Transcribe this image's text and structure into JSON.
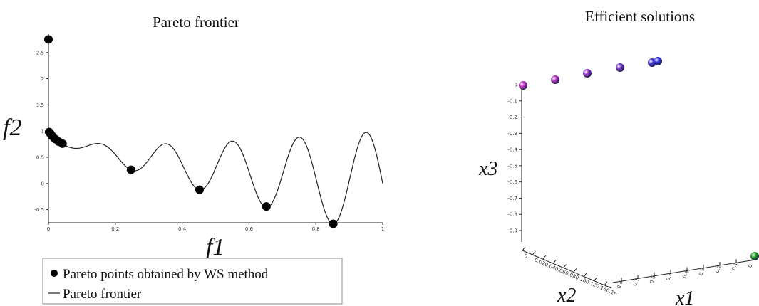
{
  "chart_data": [
    {
      "type": "line",
      "title": "Pareto frontier",
      "xlabel": "f1",
      "ylabel": "f2",
      "xlim": [
        0,
        1
      ],
      "ylim": [
        -0.75,
        2.85
      ],
      "x_ticks": [
        "0",
        "0.2",
        "0.4",
        "0.6",
        "0.8",
        "1"
      ],
      "y_ticks": [
        "-0.5",
        "0",
        "0.5",
        "1",
        "1.5",
        "2",
        "2.5"
      ],
      "series": [
        {
          "name": "Pareto points obtained by WS method",
          "kind": "scatter",
          "x": [
            0,
            0.002,
            0.006,
            0.012,
            0.02,
            0.03,
            0.042,
            0.247,
            0.452,
            0.652,
            0.852
          ],
          "y": [
            2.75,
            0.98,
            0.95,
            0.9,
            0.85,
            0.8,
            0.76,
            0.26,
            -0.12,
            -0.44,
            -0.77
          ]
        },
        {
          "name": "Pareto frontier",
          "kind": "line",
          "formula": "f2 = 1 - sqrt(f1) - f1*sin(10*pi*f1)"
        }
      ],
      "legend": "bottom-left"
    },
    {
      "type": "scatter",
      "title": "Efficient solutions",
      "xlabel": "x1",
      "ylabel": "x2",
      "zlabel": "x3",
      "x1_ticks": [
        "0.8",
        "0.7",
        "0.6",
        "0.5",
        "0.4",
        "0.3",
        "0.2",
        "0.1",
        "0"
      ],
      "x2_ticks": [
        "0",
        "0.02",
        "0.04",
        "0.06",
        "0.08",
        "0.10",
        "0.12",
        "0.14",
        "0.16"
      ],
      "x3_ticks": [
        "0",
        "-0.1",
        "-0.2",
        "-0.3",
        "-0.4",
        "-0.5",
        "-0.6",
        "-0.7",
        "-0.8",
        "-0.9"
      ],
      "points": [
        {
          "label": "",
          "color": "#cc33cc"
        },
        {
          "label": "",
          "color": "#bb33cc"
        },
        {
          "label": "",
          "color": "#9933cc"
        },
        {
          "label": "",
          "color": "#7733cc"
        },
        {
          "label": "",
          "color": "#4433dd"
        },
        {
          "label": "",
          "color": "#3333dd"
        },
        {
          "label": "",
          "color": "#22aa22"
        }
      ]
    }
  ]
}
